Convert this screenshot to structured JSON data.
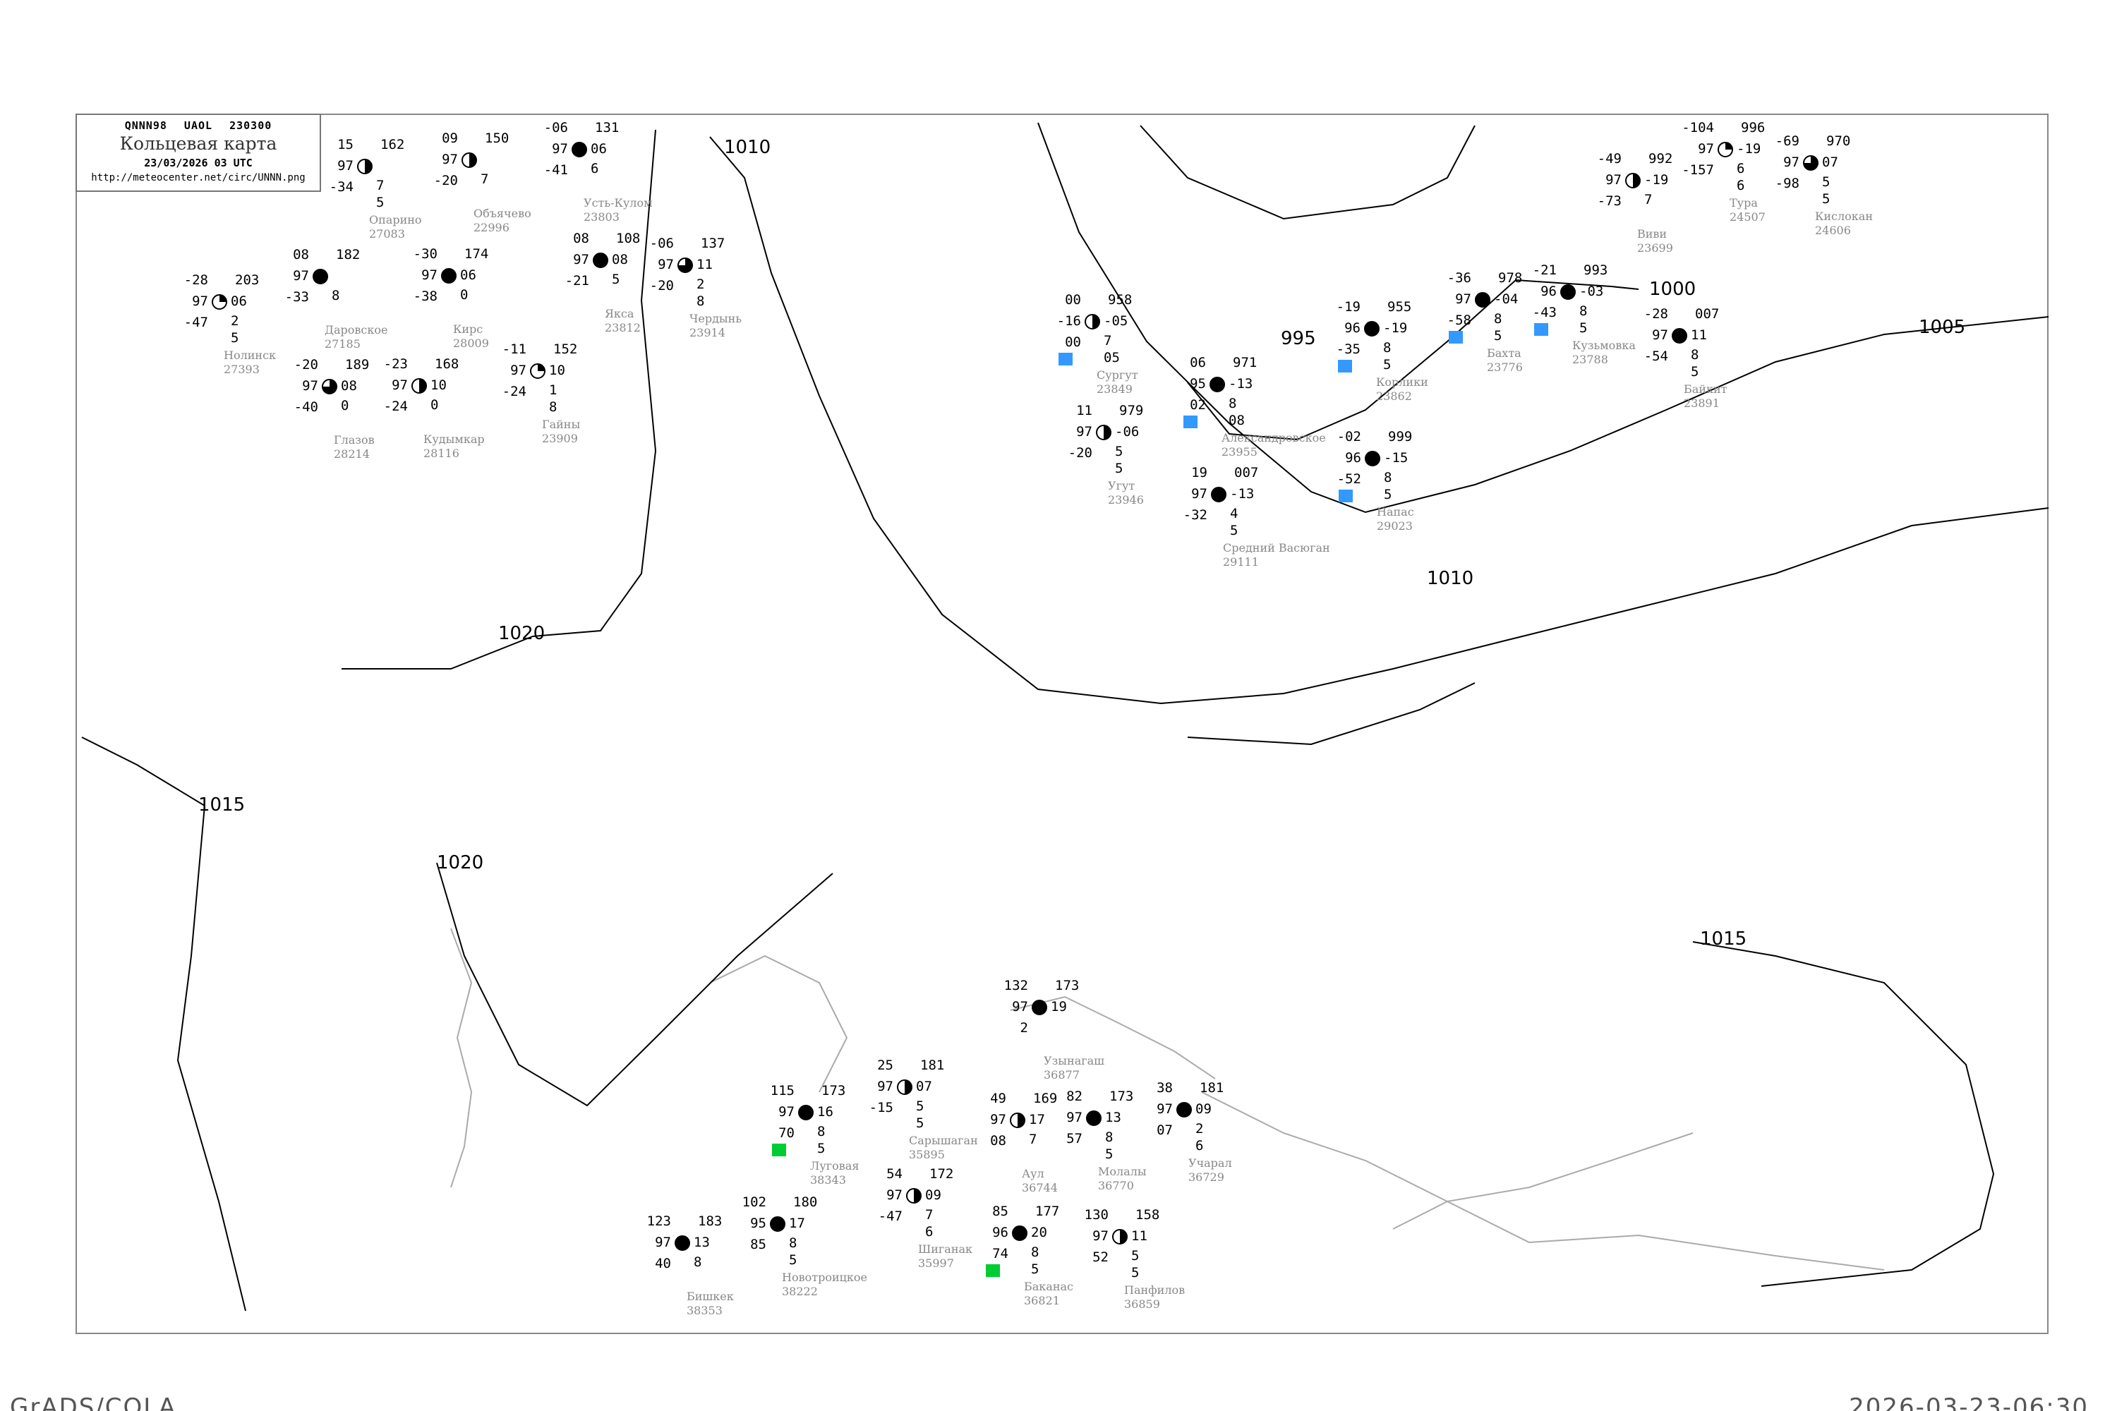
{
  "header": {
    "code": "QNNN98 UAOL 230300",
    "title": "Кольцевая карта",
    "date": "23/03/2026 03 UTC",
    "url": "http://meteocenter.net/circ/UNNN.png"
  },
  "footer": {
    "left": "GrADS/COLA",
    "right": "2026-03-23-06:30"
  },
  "colors": {
    "snow": "#3399ff",
    "rain": "#00cc33",
    "isobar": "#000000",
    "coast": "#aaaaaa",
    "station_label": "#888888"
  },
  "isobars": [
    {
      "value": "1010"
    },
    {
      "value": "1005"
    },
    {
      "value": "1000"
    },
    {
      "value": "995"
    },
    {
      "value": "1020"
    },
    {
      "value": "1015"
    },
    {
      "value": "1010"
    },
    {
      "value": "1015"
    },
    {
      "value": "1020"
    }
  ],
  "stations": [
    {
      "name": "Опарино",
      "index": "27083",
      "t": "15",
      "vv": "97",
      "td": "-34",
      "p": "162",
      "pt": "",
      "c1": "7",
      "c2": "5",
      "cover": "half"
    },
    {
      "name": "Объячево",
      "index": "22996",
      "t": "09",
      "vv": "97",
      "td": "-20",
      "p": "150",
      "pt": "",
      "c1": "7",
      "c2": "",
      "cover": "half"
    },
    {
      "name": "Усть-Кулом",
      "index": "23803",
      "t": "-06",
      "vv": "97",
      "td": "-41",
      "p": "131",
      "pt": "06",
      "c1": "6",
      "c2": "",
      "cover": "full"
    },
    {
      "name": "Якса",
      "index": "23812",
      "t": "08",
      "vv": "97",
      "td": "-21",
      "p": "108",
      "pt": "08",
      "c1": "5",
      "c2": "",
      "cover": "full"
    },
    {
      "name": "Даровское",
      "index": "27185",
      "t": "08",
      "vv": "97",
      "td": "-33",
      "p": "182",
      "pt": "",
      "c1": "8",
      "c2": "",
      "cover": "full"
    },
    {
      "name": "Кирс",
      "index": "28009",
      "t": "-30",
      "vv": "97",
      "td": "-38",
      "p": "174",
      "pt": "06",
      "c1": "0",
      "c2": "",
      "cover": "full"
    },
    {
      "name": "Гайны",
      "index": "23909",
      "t": "-11",
      "vv": "97",
      "td": "-24",
      "p": "152",
      "pt": "10",
      "c1": "1",
      "c2": "8",
      "cover": "quarter"
    },
    {
      "name": "Чердынь",
      "index": "23914",
      "t": "-06",
      "vv": "97",
      "td": "-20",
      "p": "137",
      "pt": "11",
      "c1": "2",
      "c2": "8",
      "cover": "tq"
    },
    {
      "name": "Кудымкар",
      "index": "28116",
      "t": "-23",
      "vv": "97",
      "td": "-24",
      "p": "168",
      "pt": "10",
      "c1": "0",
      "c2": "",
      "cover": "half"
    },
    {
      "name": "Глазов",
      "index": "28214",
      "t": "-20",
      "vv": "97",
      "td": "-40",
      "p": "189",
      "pt": "08",
      "c1": "0",
      "c2": "",
      "cover": "tq"
    },
    {
      "name": "Нолинск",
      "index": "27393",
      "t": "-28",
      "vv": "97",
      "td": "-47",
      "p": "203",
      "pt": "06",
      "c1": "2",
      "c2": "5",
      "cover": "quarter"
    },
    {
      "name": "Сургут",
      "index": "23849",
      "t": "00",
      "vv": "-16",
      "td": "00",
      "p": "958",
      "pt": "-05",
      "c1": "7",
      "c2": "05",
      "cover": "half",
      "precip": "snow"
    },
    {
      "name": "Угут",
      "index": "23946",
      "t": "11",
      "vv": "97",
      "td": "-20",
      "p": "979",
      "pt": "-06",
      "c1": "5",
      "c2": "5",
      "cover": "half"
    },
    {
      "name": "Александровское",
      "index": "23955",
      "t": "06",
      "vv": "95",
      "td": "02",
      "p": "971",
      "pt": "-13",
      "c1": "8",
      "c2": "08",
      "cover": "full",
      "precip": "snow"
    },
    {
      "name": "Корлики",
      "index": "23862",
      "t": "-19",
      "vv": "96",
      "td": "-35",
      "p": "955",
      "pt": "-19",
      "c1": "8",
      "c2": "5",
      "cover": "full",
      "precip": "snow"
    },
    {
      "name": "Напас",
      "index": "29023",
      "t": "-02",
      "vv": "96",
      "td": "-52",
      "p": "999",
      "pt": "-15",
      "c1": "8",
      "c2": "5",
      "cover": "full",
      "precip": "snow"
    },
    {
      "name": "Средний Васюган",
      "index": "29111",
      "t": "19",
      "vv": "97",
      "td": "-32",
      "p": "007",
      "pt": "-13",
      "c1": "4",
      "c2": "5",
      "cover": "full"
    },
    {
      "name": "Тура",
      "index": "24507",
      "t": "-104",
      "vv": "97",
      "td": "-157",
      "p": "996",
      "pt": "-19",
      "c1": "6",
      "c2": "6",
      "cover": "quarter"
    },
    {
      "name": "Кислокан",
      "index": "24606",
      "t": "-69",
      "vv": "97",
      "td": "-98",
      "p": "970",
      "pt": "07",
      "c1": "5",
      "c2": "5",
      "cover": "tq"
    },
    {
      "name": "Виви",
      "index": "23699",
      "t": "-49",
      "vv": "97",
      "td": "-73",
      "p": "992",
      "pt": "-19",
      "c1": "7",
      "c2": "",
      "cover": "half"
    },
    {
      "name": "Кузьмовка",
      "index": "23788",
      "t": "-21",
      "vv": "96",
      "td": "-43",
      "p": "993",
      "pt": "-03",
      "c1": "8",
      "c2": "5",
      "cover": "full",
      "precip": "snow"
    },
    {
      "name": "Бахта",
      "index": "23776",
      "t": "-36",
      "vv": "97",
      "td": "-58",
      "p": "978",
      "pt": "-04",
      "c1": "8",
      "c2": "5",
      "cover": "full",
      "precip": "snow"
    },
    {
      "name": "Байкит",
      "index": "23891",
      "t": "-28",
      "vv": "97",
      "td": "-54",
      "p": "007",
      "pt": "11",
      "c1": "8",
      "c2": "5",
      "cover": "full"
    },
    {
      "name": "Сарышаган",
      "index": "35895",
      "t": "25",
      "vv": "97",
      "td": "-15",
      "p": "181",
      "pt": "07",
      "c1": "5",
      "c2": "5",
      "cover": "half"
    },
    {
      "name": "Аул",
      "index": "36744",
      "t": "49",
      "vv": "97",
      "td": "08",
      "p": "169",
      "pt": "17",
      "c1": "7",
      "c2": "",
      "cover": "half"
    },
    {
      "name": "Шиганак",
      "index": "35997",
      "t": "54",
      "vv": "97",
      "td": "-47",
      "p": "172",
      "pt": "09",
      "c1": "7",
      "c2": "6",
      "cover": "half"
    },
    {
      "name": "Баканас",
      "index": "36821",
      "t": "85",
      "vv": "96",
      "td": "74",
      "p": "177",
      "pt": "20",
      "c1": "8",
      "c2": "5",
      "cover": "full",
      "precip": "rain"
    },
    {
      "name": "Молалы",
      "index": "36770",
      "t": "82",
      "vv": "97",
      "td": "57",
      "p": "173",
      "pt": "13",
      "c1": "8",
      "c2": "5",
      "cover": "full"
    },
    {
      "name": "Панфилов",
      "index": "36859",
      "t": "130",
      "vv": "97",
      "td": "52",
      "p": "158",
      "pt": "11",
      "c1": "5",
      "c2": "5",
      "cover": "half"
    },
    {
      "name": "Новотроицкое",
      "index": "38222",
      "t": "102",
      "vv": "95",
      "td": "85",
      "p": "180",
      "pt": "17",
      "c1": "8",
      "c2": "5",
      "cover": "full"
    },
    {
      "name": "Луговая",
      "index": "38343",
      "t": "115",
      "vv": "97",
      "td": "70",
      "p": "173",
      "pt": "16",
      "c1": "8",
      "c2": "5",
      "cover": "full",
      "precip": "rain"
    },
    {
      "name": "Бишкек",
      "index": "38353",
      "t": "123",
      "vv": "97",
      "td": "40",
      "p": "183",
      "pt": "13",
      "c1": "8",
      "c2": "",
      "cover": "full"
    },
    {
      "name": "Узынагаш",
      "index": "36877",
      "t": "132",
      "vv": "97",
      "td": "2",
      "p": "173",
      "pt": "19",
      "c1": "",
      "c2": "",
      "cover": "full"
    },
    {
      "name": "Учарал",
      "index": "36729",
      "t": "38",
      "vv": "97",
      "td": "07",
      "p": "181",
      "pt": "09",
      "c1": "2",
      "c2": "6",
      "cover": "full"
    }
  ]
}
